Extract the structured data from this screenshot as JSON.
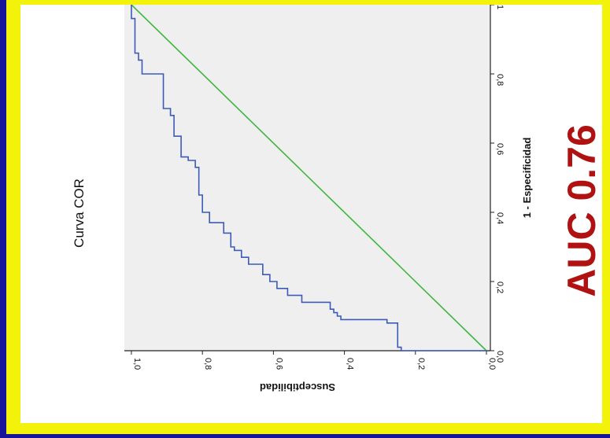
{
  "chart_data": {
    "type": "line",
    "title": "Curva COR",
    "xlabel": "1 - Especificidad",
    "ylabel": "Susceptibilidad",
    "xlim": [
      0,
      1
    ],
    "ylim": [
      0,
      1
    ],
    "x_ticks": [
      "0,0",
      "0,2",
      "0,4",
      "0,6",
      "0,8",
      "1"
    ],
    "y_ticks": [
      "0,0",
      "0,2",
      "0,4",
      "0,6",
      "0,8",
      "1,0"
    ],
    "series": [
      {
        "color": "#3c5bb8",
        "x": [
          0.0,
          0.0,
          0.01,
          0.01,
          0.08,
          0.08,
          0.09,
          0.09,
          0.1,
          0.1,
          0.11,
          0.11,
          0.12,
          0.12,
          0.14,
          0.14,
          0.16,
          0.16,
          0.18,
          0.18,
          0.2,
          0.2,
          0.22,
          0.22,
          0.25,
          0.25,
          0.27,
          0.27,
          0.29,
          0.29,
          0.3,
          0.3,
          0.34,
          0.34,
          0.37,
          0.37,
          0.4,
          0.4,
          0.45,
          0.45,
          0.53,
          0.53,
          0.55,
          0.55,
          0.56,
          0.56,
          0.62,
          0.62,
          0.68,
          0.68,
          0.7,
          0.7,
          0.8,
          0.8,
          0.84,
          0.84,
          0.86,
          0.86,
          0.96,
          0.96,
          1.0
        ],
        "y": [
          0.0,
          0.24,
          0.24,
          0.25,
          0.25,
          0.28,
          0.28,
          0.41,
          0.41,
          0.42,
          0.42,
          0.43,
          0.43,
          0.44,
          0.44,
          0.52,
          0.52,
          0.56,
          0.56,
          0.59,
          0.59,
          0.61,
          0.61,
          0.63,
          0.63,
          0.67,
          0.67,
          0.69,
          0.69,
          0.71,
          0.71,
          0.72,
          0.72,
          0.74,
          0.74,
          0.78,
          0.78,
          0.8,
          0.8,
          0.81,
          0.81,
          0.82,
          0.82,
          0.84,
          0.84,
          0.86,
          0.86,
          0.88,
          0.88,
          0.89,
          0.89,
          0.91,
          0.91,
          0.97,
          0.97,
          0.98,
          0.98,
          0.99,
          0.99,
          1.0,
          1.0
        ]
      },
      {
        "color": "#3fb63f",
        "x": [
          0,
          1
        ],
        "y": [
          0,
          1
        ]
      }
    ],
    "annotation": "AUC 0.76",
    "annotation_color": "#b01212",
    "grid": false,
    "rotation": "90deg clockwise"
  }
}
